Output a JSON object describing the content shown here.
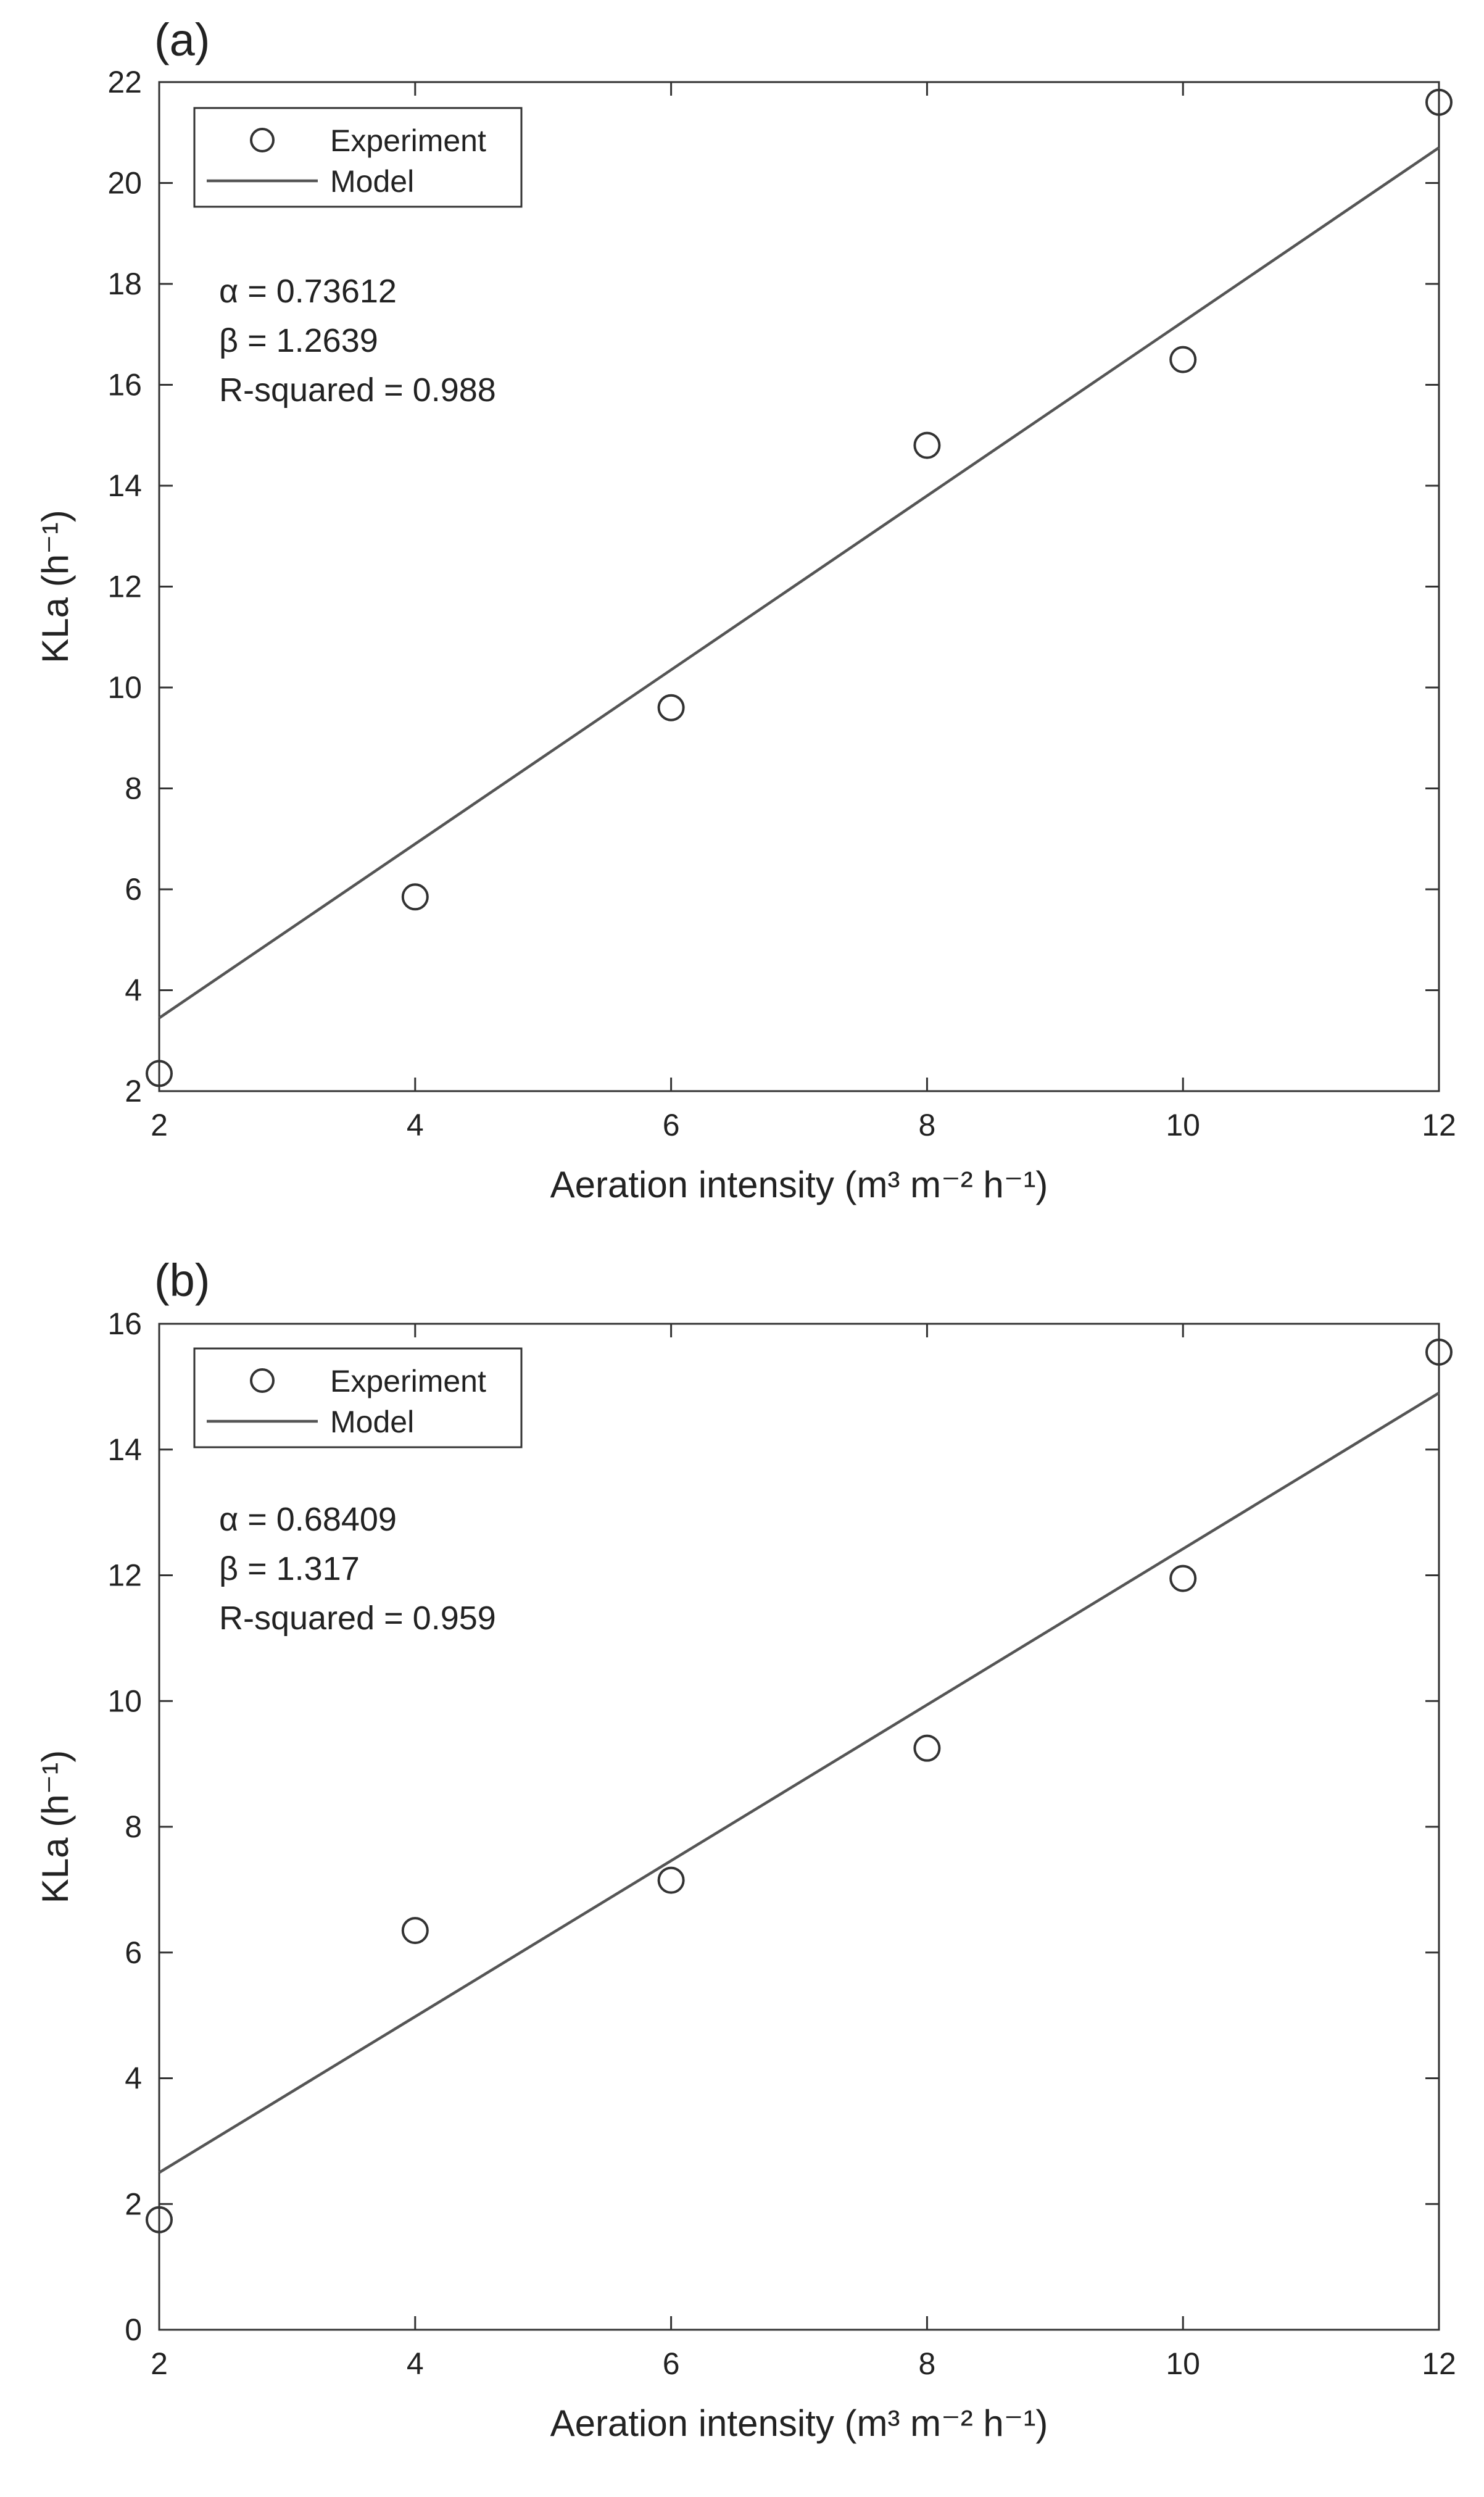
{
  "chart_data": [
    {
      "type": "scatter",
      "panel_label": "(a)",
      "xlabel": "Aeration intensity (m³ m⁻² h⁻¹)",
      "ylabel": "KLa (h⁻¹)",
      "xlim": [
        2,
        12
      ],
      "ylim": [
        2,
        22
      ],
      "xticks": [
        2,
        4,
        6,
        8,
        10,
        12
      ],
      "yticks": [
        2,
        4,
        6,
        8,
        10,
        12,
        14,
        16,
        18,
        20,
        22
      ],
      "grid": false,
      "legend": {
        "placement": "top-left",
        "entries": [
          "Experiment",
          "Model"
        ]
      },
      "annotations": [
        "α = 0.73612",
        "β = 1.2639",
        "R-squared = 0.988"
      ],
      "series": [
        {
          "name": "Experiment",
          "style": "markers",
          "x": [
            2,
            4,
            6,
            8,
            10,
            12
          ],
          "y": [
            2.35,
            5.85,
            9.6,
            14.8,
            16.5,
            21.6
          ]
        },
        {
          "name": "Model",
          "style": "line",
          "x": [
            2,
            12
          ],
          "y": [
            3.45,
            20.7
          ]
        }
      ]
    },
    {
      "type": "scatter",
      "panel_label": "(b)",
      "xlabel": "Aeration intensity (m³ m⁻² h⁻¹)",
      "ylabel": "KLa (h⁻¹)",
      "xlim": [
        2,
        12
      ],
      "ylim": [
        0,
        16
      ],
      "xticks": [
        2,
        4,
        6,
        8,
        10,
        12
      ],
      "yticks": [
        0,
        2,
        4,
        6,
        8,
        10,
        12,
        14,
        16
      ],
      "grid": false,
      "legend": {
        "placement": "top-left",
        "entries": [
          "Experiment",
          "Model"
        ]
      },
      "annotations": [
        "α = 0.68409",
        "β = 1.317",
        "R-squared = 0.959"
      ],
      "series": [
        {
          "name": "Experiment",
          "style": "markers",
          "x": [
            2,
            4,
            6,
            8,
            10,
            12
          ],
          "y": [
            1.75,
            6.35,
            7.15,
            9.25,
            11.95,
            15.55
          ]
        },
        {
          "name": "Model",
          "style": "line",
          "x": [
            2,
            12
          ],
          "y": [
            2.5,
            14.9
          ]
        }
      ]
    }
  ],
  "colors": {
    "axis": "#333333",
    "marker": "#333333",
    "model_line": "#555555",
    "background": "#ffffff"
  }
}
